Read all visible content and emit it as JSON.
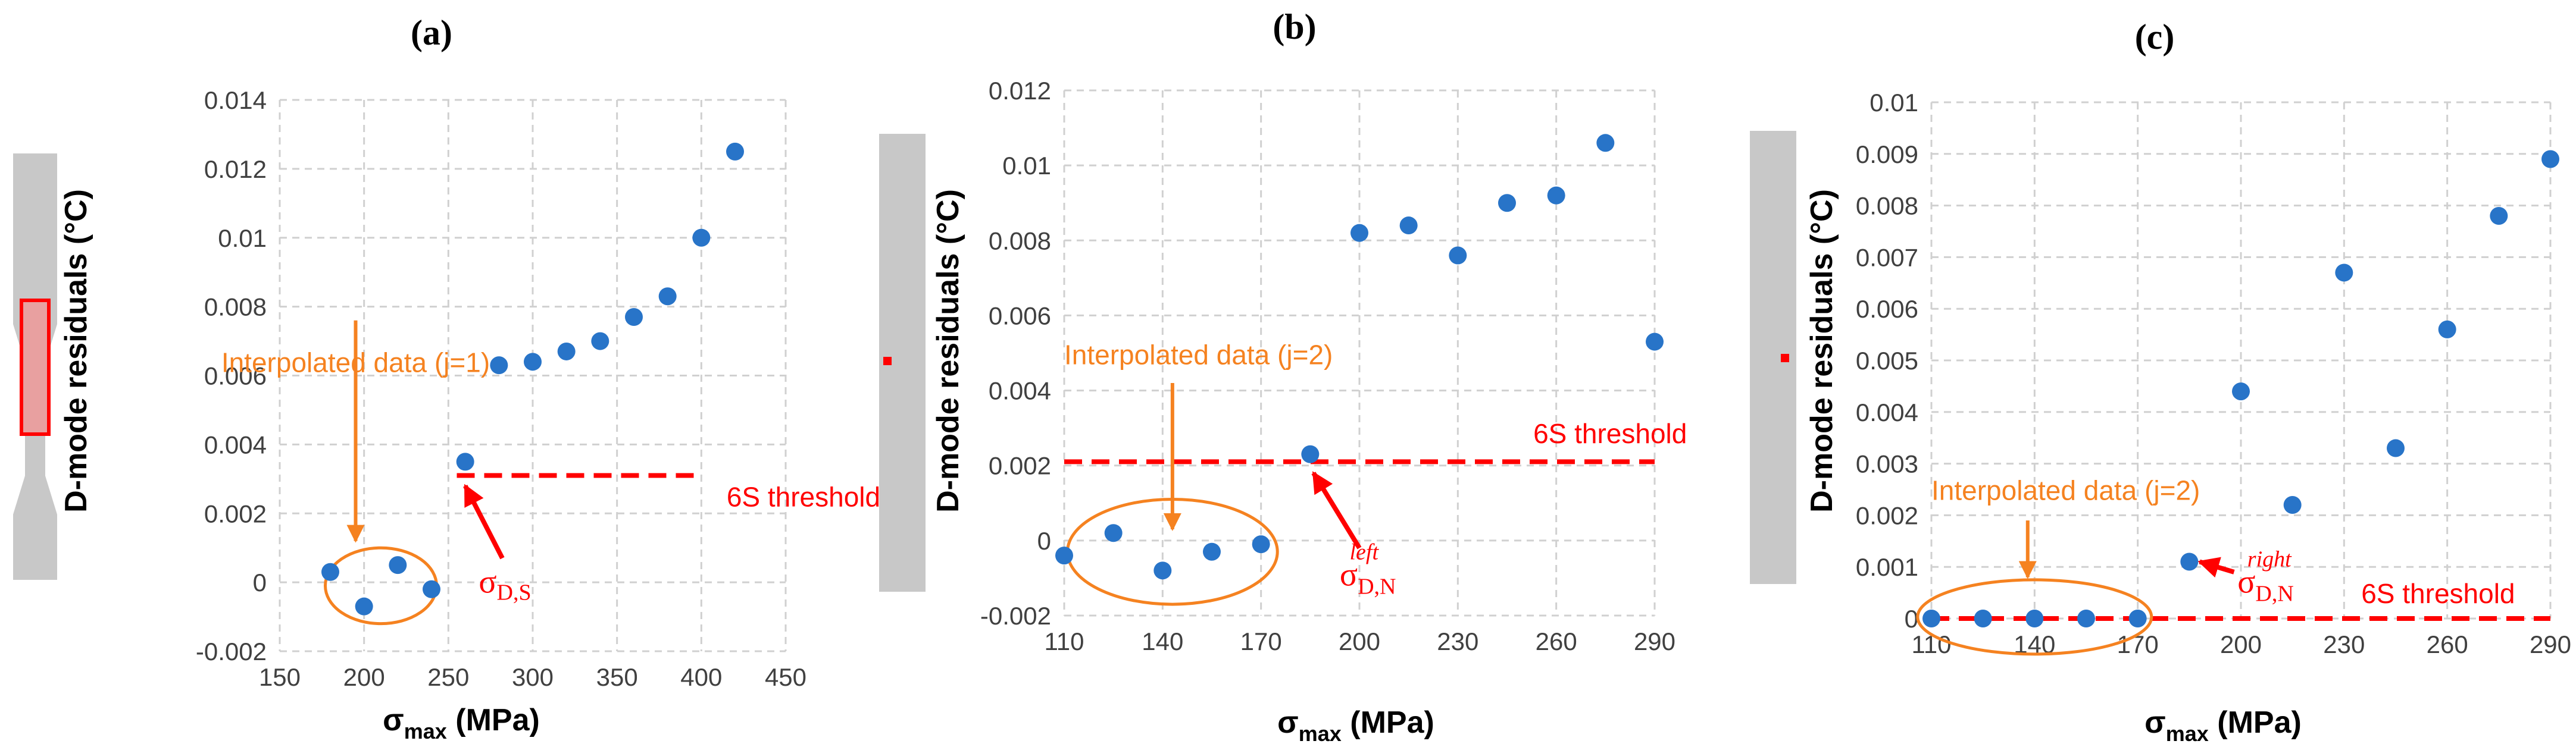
{
  "colors": {
    "marker": "#2874c8",
    "threshold": "#ff0000",
    "interp": "#f58220",
    "grid": "#d0d0d0",
    "specimen": "#c8c8c8"
  },
  "chart_data": [
    {
      "type": "scatter",
      "panel_label": "(a)",
      "ylabel": "D-mode residuals (°C)",
      "xlabel": "σ",
      "xlabel_sub": "max",
      "xlabel_unit": " (MPa)",
      "xlim": [
        150,
        450
      ],
      "ylim": [
        -0.002,
        0.014
      ],
      "xticks": [
        150,
        200,
        250,
        300,
        350,
        400,
        450
      ],
      "xtick_labels": [
        "150",
        "200",
        "250",
        "300",
        "350",
        "400",
        "450"
      ],
      "yticks": [
        -0.002,
        0,
        0.002,
        0.004,
        0.006,
        0.008,
        0.01,
        0.012,
        0.014
      ],
      "ytick_labels": [
        "-0.002",
        "0",
        "0.002",
        "0.004",
        "0.006",
        "0.008",
        "0.01",
        "0.012",
        "0.014"
      ],
      "grid": true,
      "x": [
        180,
        200,
        220,
        240,
        260,
        280,
        300,
        320,
        340,
        360,
        380,
        400,
        420
      ],
      "y": [
        0.0003,
        -0.0007,
        0.0005,
        -0.0002,
        0.0035,
        0.0063,
        0.0064,
        0.0067,
        0.007,
        0.0077,
        0.0083,
        0.01,
        0.0125
      ],
      "threshold": {
        "value": 0.0031,
        "x_range": [
          255,
          400
        ],
        "label": "6S threshold",
        "label_at": [
          415,
          0.0022
        ]
      },
      "interpolated": {
        "label": "Interpolated data (j=1)",
        "label_at": [
          195,
          0.0061
        ],
        "arrow_x": 195,
        "arrow_y": [
          0.0076,
          0.0012
        ],
        "ellipse": {
          "cx": 210,
          "cy": -0.0001,
          "rx": 33,
          "ry": 0.0011
        }
      },
      "sigma": {
        "main": "σ",
        "sub": "D,S",
        "sup": "",
        "text_at": [
          268,
          -0.0003
        ],
        "arrow_from": [
          282,
          0.0007
        ],
        "arrow_to": [
          260,
          0.0028
        ]
      },
      "specimen": "dogbone-red-box"
    },
    {
      "type": "scatter",
      "panel_label": "(b)",
      "ylabel": "D-mode residuals (°C)",
      "xlabel": "σ",
      "xlabel_sub": "max",
      "xlabel_unit": " (MPa)",
      "xlim": [
        110,
        290
      ],
      "ylim": [
        -0.002,
        0.012
      ],
      "xticks": [
        110,
        140,
        170,
        200,
        230,
        260,
        290
      ],
      "xtick_labels": [
        "110",
        "140",
        "170",
        "200",
        "230",
        "260",
        "290"
      ],
      "yticks": [
        -0.002,
        0,
        0.002,
        0.004,
        0.006,
        0.008,
        0.01,
        0.012
      ],
      "ytick_labels": [
        "-0.002",
        "0",
        "0.002",
        "0.004",
        "0.006",
        "0.008",
        "0.01",
        "0.012"
      ],
      "grid": true,
      "x": [
        110,
        125,
        140,
        155,
        170,
        185,
        200,
        215,
        230,
        245,
        260,
        275,
        290
      ],
      "y": [
        -0.0004,
        0.0002,
        -0.0008,
        -0.0003,
        -0.0001,
        0.0023,
        0.0082,
        0.0084,
        0.0076,
        0.009,
        0.0092,
        0.0106,
        0.0053
      ],
      "threshold": {
        "value": 0.0021,
        "x_range": [
          110,
          290
        ],
        "label": "6S threshold",
        "label_at": [
          253,
          0.0026
        ]
      },
      "interpolated": {
        "label": "Interpolated data (j=2)",
        "label_at": [
          110,
          0.0047
        ],
        "arrow_x": 143,
        "arrow_y": [
          0.0042,
          0.0003
        ],
        "ellipse": {
          "cx": 143,
          "cy": -0.0003,
          "rx": 32,
          "ry": 0.0014
        }
      },
      "sigma": {
        "main": "σ",
        "sub": "D,N",
        "sup": "left",
        "text_at": [
          194,
          -0.0012
        ],
        "arrow_from": [
          200,
          -0.0002
        ],
        "arrow_to": [
          186,
          0.0018
        ]
      },
      "specimen": "bar-red-dot"
    },
    {
      "type": "scatter",
      "panel_label": "(c)",
      "ylabel": "D-mode residuals (°C)",
      "xlabel": "σ",
      "xlabel_sub": "max",
      "xlabel_unit": " (MPa)",
      "xlim": [
        110,
        290
      ],
      "ylim": [
        0,
        0.01
      ],
      "xticks": [
        110,
        140,
        170,
        200,
        230,
        260,
        290
      ],
      "xtick_labels": [
        "110",
        "140",
        "170",
        "200",
        "230",
        "260",
        "290"
      ],
      "yticks": [
        0,
        0.001,
        0.002,
        0.003,
        0.004,
        0.005,
        0.006,
        0.007,
        0.008,
        0.009,
        0.01
      ],
      "ytick_labels": [
        "0",
        "0.001",
        "0.002",
        "0.003",
        "0.004",
        "0.005",
        "0.006",
        "0.007",
        "0.008",
        "0.009",
        "0.01"
      ],
      "grid": true,
      "x": [
        110,
        125,
        140,
        155,
        170,
        185,
        200,
        215,
        230,
        245,
        260,
        275,
        290
      ],
      "y": [
        0,
        0,
        0,
        0,
        0,
        0.0011,
        0.0044,
        0.0022,
        0.0067,
        0.0033,
        0.0056,
        0.0078,
        0.0089
      ],
      "threshold": {
        "value": 0,
        "x_range": [
          110,
          290
        ],
        "label": "6S threshold",
        "label_at": [
          235,
          0.0003
        ]
      },
      "interpolated": {
        "label": "Interpolated data (j=2)",
        "label_at": [
          110,
          0.0023
        ],
        "arrow_x": 138,
        "arrow_y": [
          0.0019,
          0.0008
        ],
        "ellipse": {
          "cx": 140,
          "cy": 3e-05,
          "rx": 34,
          "ry": 0.00072
        }
      },
      "sigma": {
        "main": "σ",
        "sub": "D,N",
        "sup": "right",
        "text_at": [
          199,
          0.0005
        ],
        "arrow_from": [
          198,
          0.0009
        ],
        "arrow_to": [
          188,
          0.0011
        ]
      },
      "specimen": "bar-red-dot"
    }
  ]
}
